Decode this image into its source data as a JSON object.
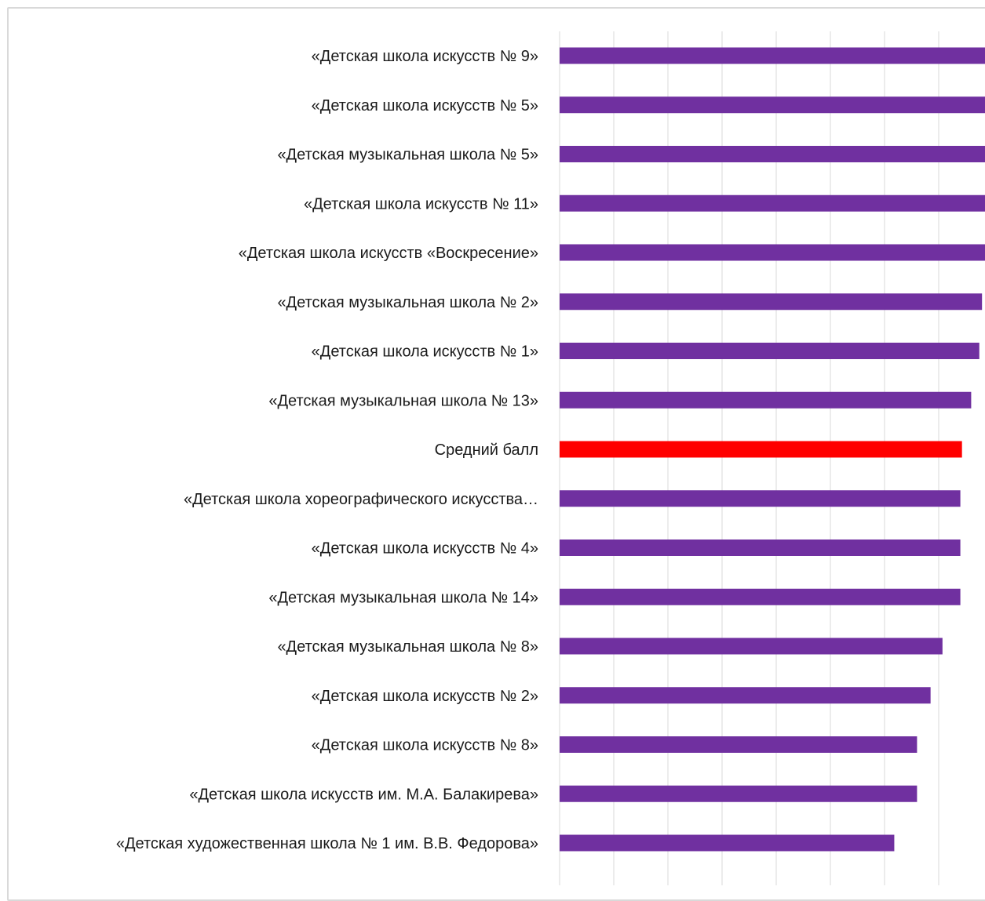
{
  "chart_data": {
    "type": "bar",
    "orientation": "horizontal",
    "title": "",
    "xlabel": "",
    "ylabel": "",
    "grid": true,
    "legend": "none",
    "xlim": [
      0,
      7.9
    ],
    "colors": {
      "default_bar": "#7030a0",
      "highlight_bar": "#ff0000",
      "gridline": "#d9d9d9",
      "label_text": "#1a1a1a",
      "frame": "#d9d9d9"
    },
    "categories": [
      "«Детская школа искусств № 9»",
      "«Детская школа  искусств № 5»",
      "«Детская музыкальная школа № 5»",
      "«Детская  школа искусств № 11»",
      "«Детская школа искусств «Воскресение»",
      "«Детская музыкальная школа № 2»",
      "«Детская школа  искусств № 1»",
      "«Детская музыкальная школа № 13»",
      "Средний балл",
      "«Детская школа хореографического искусства…",
      "«Детская школа  искусств № 4»",
      "«Детская музыкальная школа № 14»",
      "«Детская музыкальная школа № 8»",
      "«Детская школа искусств № 2»",
      "«Детская школа искусств № 8»",
      "«Детская школа  искусств им. М.А. Балакирева»",
      "«Детская художественная школа № 1 им. В.В. Федорова»"
    ],
    "values": [
      8.0,
      8.0,
      8.0,
      8.0,
      8.0,
      7.8,
      7.75,
      7.6,
      7.43,
      7.4,
      7.4,
      7.4,
      7.07,
      6.85,
      6.6,
      6.6,
      6.18
    ],
    "highlight_categories": [
      "Средний балл"
    ]
  }
}
